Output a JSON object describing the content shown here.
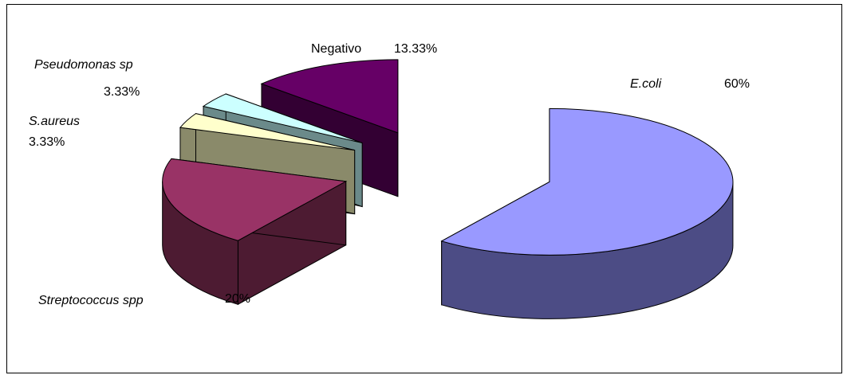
{
  "chart_data": {
    "type": "pie",
    "style": "3d-exploded",
    "title": "",
    "slices": [
      {
        "name": "E.coli",
        "value": 60,
        "value_label": "60%",
        "italic": true,
        "top_color": "#9999ff",
        "side_color": "#4c4c85"
      },
      {
        "name": "Streptococcus spp",
        "value": 20,
        "value_label": "20%",
        "italic": true,
        "top_color": "#993366",
        "side_color": "#4d1b32"
      },
      {
        "name": "S.aureus",
        "value": 3.33,
        "value_label": "3.33%",
        "italic": true,
        "top_color": "#ffffcc",
        "side_color": "#8a8a6a"
      },
      {
        "name": "Pseudomonas  sp",
        "value": 3.33,
        "value_label": "3.33%",
        "italic": true,
        "top_color": "#ccffff",
        "side_color": "#6b8a8a"
      },
      {
        "name": "Negativo",
        "value": 13.33,
        "value_label": "13.33%",
        "italic": false,
        "top_color": "#660066",
        "side_color": "#330033"
      }
    ]
  }
}
